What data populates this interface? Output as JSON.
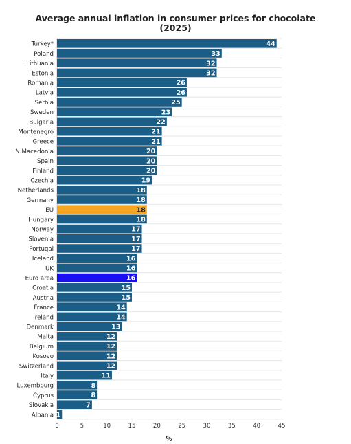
{
  "chart_data": {
    "type": "bar",
    "orientation": "horizontal",
    "title_line1": "Average annual inflation in consumer prices for chocolate",
    "title_line2": "(2025)",
    "xlabel": "%",
    "ylabel": "",
    "xlim": [
      0,
      45
    ],
    "x_ticks": [
      "0",
      "5",
      "10",
      "15",
      "20",
      "25",
      "30",
      "35",
      "40",
      "45"
    ],
    "grid": true,
    "categories": [
      "Turkey*",
      "Poland",
      "Lithuania",
      "Estonia",
      "Romania",
      "Latvia",
      "Serbia",
      "Sweden",
      "Bulgaria",
      "Montenegro",
      "Greece",
      "N.Macedonia",
      "Spain",
      "Finland",
      "Czechia",
      "Netherlands",
      "Germany",
      "EU",
      "Hungary",
      "Norway",
      "Slovenia",
      "Portugal",
      "Iceland",
      "UK",
      "Euro area",
      "Croatia",
      "Austria",
      "France",
      "Ireland",
      "Denmark",
      "Malta",
      "Belgium",
      "Kosovo",
      "Switzerland",
      "Italy",
      "Luxembourg",
      "Cyprus",
      "Slovakia",
      "Albania"
    ],
    "values": [
      44,
      33,
      32,
      32,
      26,
      26,
      25,
      23,
      22,
      21,
      21,
      20,
      20,
      20,
      19,
      18,
      18,
      18,
      18,
      17,
      17,
      17,
      16,
      16,
      16,
      15,
      15,
      14,
      14,
      13,
      12,
      12,
      12,
      12,
      11,
      8,
      8,
      7,
      1
    ],
    "labels": [
      "44",
      "33",
      "32",
      "32",
      "26",
      "26",
      "25",
      "23",
      "22",
      "21",
      "21",
      "20",
      "20",
      "20",
      "19",
      "18",
      "18",
      "18",
      "18",
      "17",
      "17",
      "17",
      "16",
      "16",
      "16",
      "15",
      "15",
      "14",
      "14",
      "13",
      "12",
      "12",
      "12",
      "12",
      "11",
      "8",
      "8",
      "7",
      "1"
    ],
    "colors": {
      "default": "#1a5e87",
      "highlight": {
        "EU": "#f5a623",
        "Euro area": "#1a0ff0"
      },
      "label_default": "#ffffff",
      "label_highlight": {
        "EU": "#222222",
        "Euro area": "#ffffff"
      }
    }
  }
}
